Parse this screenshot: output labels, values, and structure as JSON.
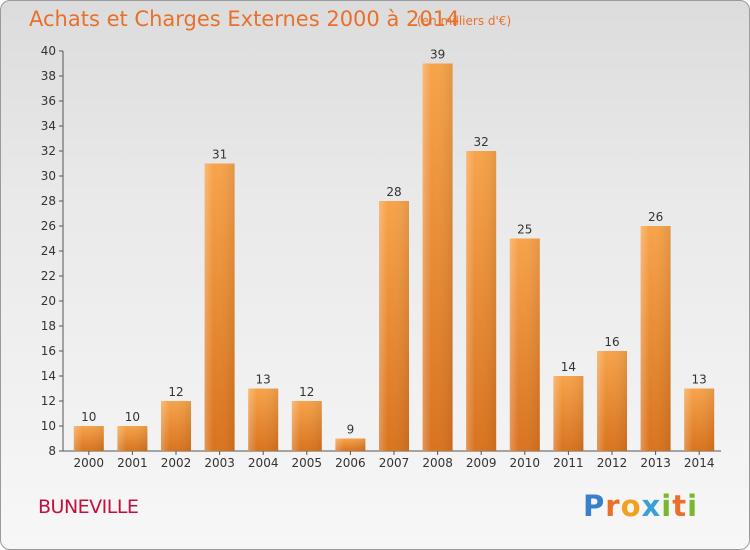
{
  "title": "Achats et Charges Externes 2000 à 2014",
  "subtitle": "(en milliers d'€)",
  "commune": "BUNEVILLE",
  "logo": "Proxiti",
  "colors": {
    "bar_top": "#f7a34a",
    "bar_bottom": "#d9731e",
    "title": "#e8702a",
    "commune": "#c0103c"
  },
  "chart_data": {
    "type": "bar",
    "title": "Achats et Charges Externes 2000 à 2014",
    "subtitle": "(en milliers d'€)",
    "xlabel": "",
    "ylabel": "",
    "categories": [
      "2000",
      "2001",
      "2002",
      "2003",
      "2004",
      "2005",
      "2006",
      "2007",
      "2008",
      "2009",
      "2010",
      "2011",
      "2012",
      "2013",
      "2014"
    ],
    "values": [
      10,
      10,
      12,
      31,
      13,
      12,
      9,
      28,
      39,
      32,
      25,
      14,
      16,
      26,
      13
    ],
    "ylim": [
      8,
      40
    ],
    "yticks": [
      8,
      10,
      12,
      14,
      16,
      18,
      20,
      22,
      24,
      26,
      28,
      30,
      32,
      34,
      36,
      38,
      40
    ],
    "grid": false,
    "data_labels": true
  }
}
